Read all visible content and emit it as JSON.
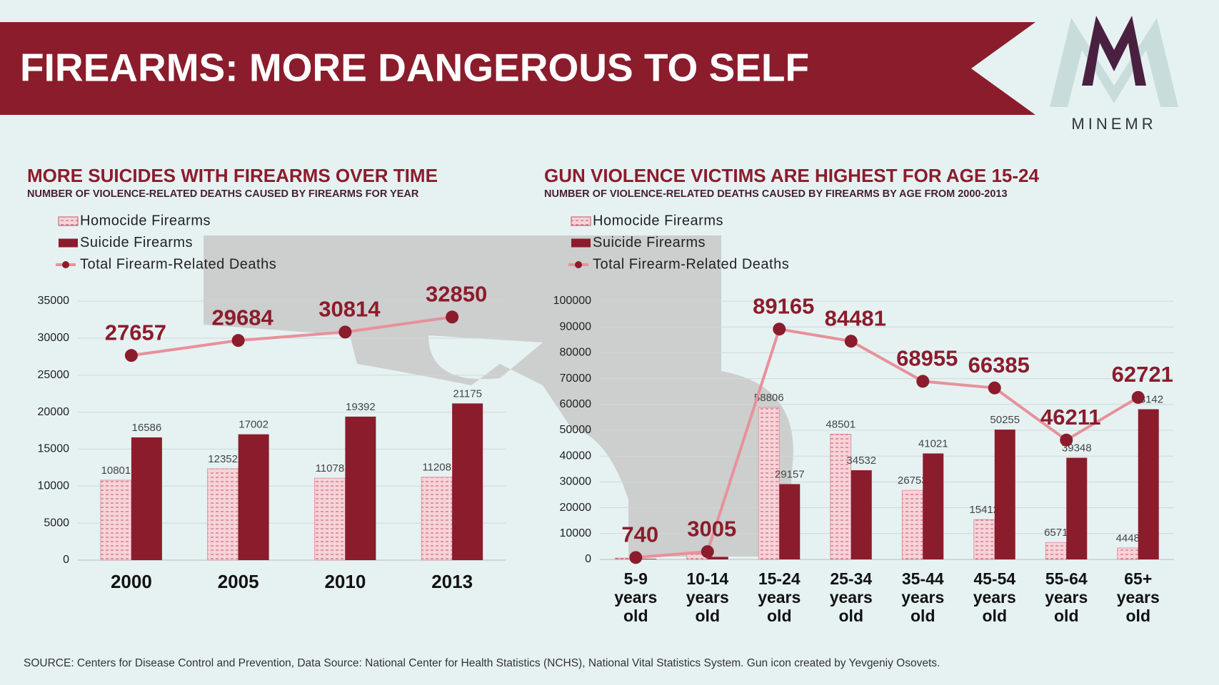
{
  "header": {
    "title": "FIREARMS: MORE DANGEROUS TO SELF",
    "logo": "MINEMR"
  },
  "chart_data": [
    {
      "type": "bar",
      "title": "MORE SUICIDES WITH FIREARMS OVER TIME",
      "subtitle": "NUMBER OF VIOLENCE-RELATED DEATHS CAUSED BY FIREARMS FOR YEAR",
      "categories": [
        "2000",
        "2005",
        "2010",
        "2013"
      ],
      "series": [
        {
          "name": "Homocide Firearms",
          "color": "#f7d3d8",
          "values": [
            10801,
            12352,
            11078,
            11208
          ]
        },
        {
          "name": "Suicide Firearms",
          "color": "#8b1c2c",
          "values": [
            16586,
            17002,
            19392,
            21175
          ]
        },
        {
          "name": "Total Firearm-Related Deaths",
          "type": "line",
          "color": "#e8919b",
          "marker_color": "#8b1c2c",
          "values": [
            27657,
            29684,
            30814,
            32850
          ]
        }
      ],
      "ylim": [
        0,
        35000
      ],
      "yticks": [
        0,
        5000,
        10000,
        15000,
        20000,
        25000,
        30000,
        35000
      ],
      "grid": true
    },
    {
      "type": "bar",
      "title": "GUN VIOLENCE VICTIMS ARE HIGHEST FOR AGE 15-24",
      "subtitle": "NUMBER OF VIOLENCE-RELATED DEATHS CAUSED BY FIREARMS BY AGE FROM 2000-2013",
      "categories": [
        "5-9 years old",
        "10-14 years old",
        "15-24 years old",
        "25-34 years old",
        "35-44 years old",
        "45-54 years old",
        "55-64 years old",
        "65+ years old"
      ],
      "series": [
        {
          "name": "Homocide Firearms",
          "color": "#f7d3d8",
          "values": [
            520,
            2000,
            58806,
            48501,
            26753,
            15412,
            6571,
            4448
          ]
        },
        {
          "name": "Suicide Firearms",
          "color": "#8b1c2c",
          "values": [
            220,
            1005,
            29157,
            34532,
            41021,
            50255,
            39348,
            58142
          ]
        },
        {
          "name": "Total Firearm-Related Deaths",
          "type": "line",
          "color": "#e8919b",
          "marker_color": "#8b1c2c",
          "values": [
            740,
            3005,
            89165,
            84481,
            68955,
            66385,
            46211,
            62721
          ]
        }
      ],
      "ylim": [
        0,
        100000
      ],
      "yticks": [
        0,
        10000,
        20000,
        30000,
        40000,
        50000,
        60000,
        70000,
        80000,
        90000,
        100000
      ],
      "grid": true
    }
  ],
  "source": "SOURCE: Centers for Disease Control and Prevention, Data Source: National Center for Health Statistics (NCHS), National Vital Statistics System. Gun icon created by Yevgeniy Osovets."
}
